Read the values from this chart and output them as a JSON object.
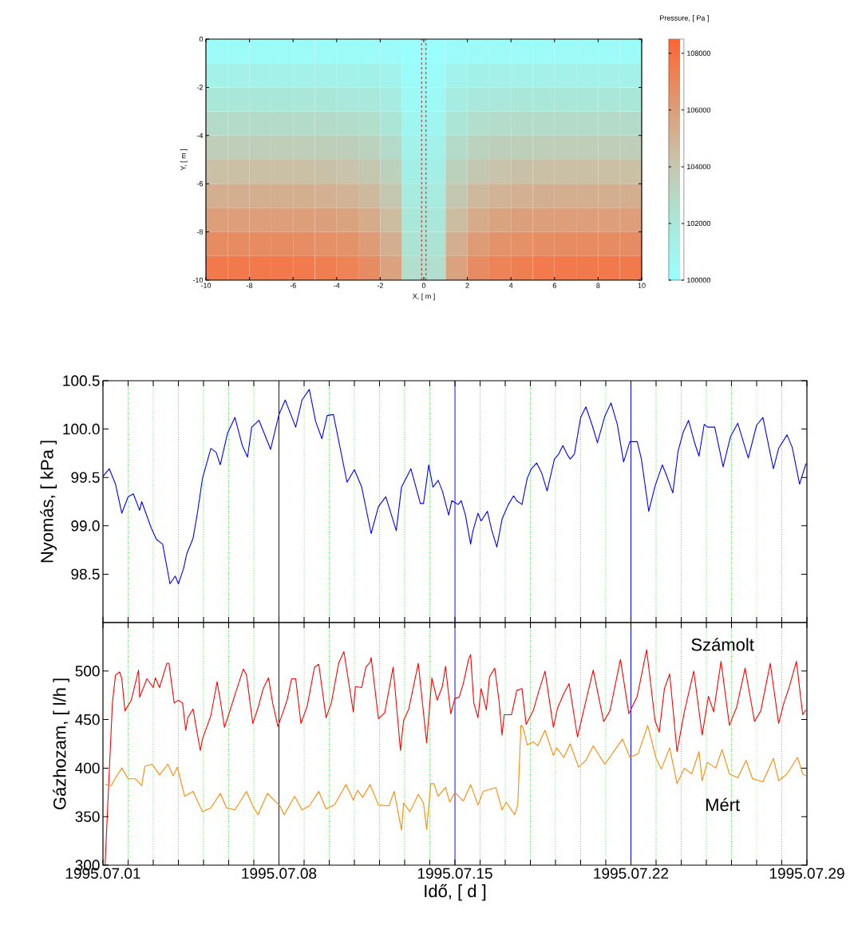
{
  "chart_data": [
    {
      "type": "heatmap",
      "xlabel": "X, [ m ]",
      "ylabel": "Y, [ m ]",
      "clabel": "Pressure, [ Pa ]",
      "x": [
        -9.5,
        -8.5,
        -7.5,
        -6.5,
        -5.5,
        -4.5,
        -3.5,
        -2.5,
        -1.5,
        -0.5,
        0.5,
        1.5,
        2.5,
        3.5,
        4.5,
        5.5,
        6.5,
        7.5,
        8.5,
        9.5
      ],
      "y": [
        -0.5,
        -1.5,
        -2.5,
        -3.5,
        -4.5,
        -5.5,
        -6.5,
        -7.5,
        -8.5,
        -9.5
      ],
      "cells": [
        [
          100400,
          100400,
          100400,
          100400,
          100400,
          100400,
          100400,
          100400,
          100350,
          100100,
          100100,
          100350,
          100400,
          100400,
          100400,
          100400,
          100400,
          100400,
          100400,
          100400
        ],
        [
          101200,
          101200,
          101200,
          101200,
          101200,
          101200,
          101200,
          101150,
          101000,
          100300,
          100300,
          101000,
          101150,
          101200,
          101200,
          101200,
          101200,
          101200,
          101200,
          101200
        ],
        [
          102000,
          102000,
          102000,
          102000,
          102000,
          102000,
          101950,
          101900,
          101600,
          100500,
          100500,
          101600,
          101900,
          101950,
          102000,
          102000,
          102000,
          102000,
          102000,
          102000
        ],
        [
          102800,
          102800,
          102800,
          102800,
          102800,
          102800,
          102750,
          102600,
          102200,
          100800,
          100800,
          102200,
          102600,
          102750,
          102800,
          102800,
          102800,
          102800,
          102800,
          102800
        ],
        [
          103600,
          103600,
          103600,
          103600,
          103600,
          103550,
          103500,
          103300,
          102800,
          101100,
          101100,
          102800,
          103300,
          103500,
          103550,
          103600,
          103600,
          103600,
          103600,
          103600
        ],
        [
          104400,
          104400,
          104400,
          104400,
          104400,
          104350,
          104250,
          104000,
          103400,
          101400,
          101400,
          103400,
          104000,
          104250,
          104350,
          104400,
          104400,
          104400,
          104400,
          104400
        ],
        [
          105200,
          105200,
          105200,
          105200,
          105200,
          105150,
          105000,
          104700,
          104000,
          101700,
          101700,
          104000,
          104700,
          105000,
          105150,
          105200,
          105200,
          105200,
          105200,
          105200
        ],
        [
          106000,
          106000,
          106000,
          106000,
          105950,
          105900,
          105750,
          105400,
          104600,
          102000,
          102000,
          104600,
          105400,
          105750,
          105900,
          105950,
          106000,
          106000,
          106000,
          106000
        ],
        [
          106800,
          106800,
          106800,
          106800,
          106750,
          106650,
          106500,
          106100,
          105200,
          102300,
          102300,
          105200,
          106100,
          106500,
          106650,
          106750,
          106800,
          106800,
          106800,
          106800
        ],
        [
          107600,
          107600,
          107600,
          107600,
          107550,
          107400,
          107200,
          106800,
          105800,
          102600,
          102600,
          105800,
          106800,
          107200,
          107400,
          107550,
          107600,
          107600,
          107600,
          107600
        ]
      ],
      "xlim": [
        -10,
        10
      ],
      "ylim": [
        -10,
        0
      ],
      "xticks": [
        -10,
        -8,
        -6,
        -4,
        -2,
        0,
        2,
        4,
        6,
        8,
        10
      ],
      "yticks": [
        -10,
        -8,
        -6,
        -4,
        -2,
        0
      ],
      "clim": [
        100000,
        108500
      ],
      "cticks": [
        100000,
        102000,
        104000,
        106000,
        108000
      ],
      "ref_lines": [
        {
          "axis": "x",
          "value": -0.1,
          "color": "#b22222",
          "line_style": "dashed"
        },
        {
          "axis": "x",
          "value": 0.1,
          "color": "#b22222",
          "line_style": "dashed"
        }
      ]
    },
    {
      "type": "line",
      "ylabel": "Nyomás, [ kPa ]",
      "xlim": [
        "1995-07-01",
        "1995-07-29"
      ],
      "xticks": [
        {
          "value": "1995-07-01",
          "label": null
        },
        "1995-07-02",
        "1995-07-03",
        "1995-07-04",
        "1995-07-05",
        "1995-07-06",
        "1995-07-07",
        {
          "value": "1995-07-08",
          "label": null
        },
        "1995-07-09",
        "1995-07-10",
        "1995-07-11",
        "1995-07-12",
        "1995-07-13",
        "1995-07-14",
        {
          "value": "1995-07-15",
          "label": null
        },
        "1995-07-16",
        "1995-07-17",
        "1995-07-18",
        "1995-07-19",
        "1995-07-20",
        "1995-07-21",
        {
          "value": "1995-07-22",
          "label": null
        },
        "1995-07-23",
        "1995-07-24",
        "1995-07-25",
        "1995-07-26",
        "1995-07-27",
        "1995-07-28",
        {
          "value": "1995-07-29",
          "label": null
        }
      ],
      "ylim": [
        98.0,
        100.5
      ],
      "yticks": [
        98.5,
        {
          "value": 99,
          "label": "99.0"
        },
        99.5,
        {
          "value": 100,
          "label": "100.0"
        },
        100.5
      ],
      "tick_labels": "y",
      "grid": "x",
      "series": [
        {
          "color": "#0000ff",
          "x": [
            "1995-07-01T00:00",
            "1995-07-01T06:00",
            "1995-07-01T12:00",
            "1995-07-01T18:00",
            "1995-07-02T00:00",
            "1995-07-02T05:00",
            "1995-07-02T11:00",
            "1995-07-02T13:00",
            "1995-07-02T22:00",
            "1995-07-03T03:00",
            "1995-07-03T09:00",
            "1995-07-03T16:00",
            "1995-07-03T21:00",
            "1995-07-04T00:00",
            "1995-07-04T05:00",
            "1995-07-04T08:00",
            "1995-07-04T14:00",
            "1995-07-04T18:00",
            "1995-07-04T23:00",
            "1995-07-05T07:00",
            "1995-07-05T12:00",
            "1995-07-05T16:00",
            "1995-07-05T23:00",
            "1995-07-06T06:00",
            "1995-07-06T13:00",
            "1995-07-06T18:00",
            "1995-07-06T22:00",
            "1995-07-07T05:00",
            "1995-07-07T16:00",
            "1995-07-08T00:00",
            "1995-07-08T06:00",
            "1995-07-08T16:00",
            "1995-07-08T22:00",
            "1995-07-09T05:00",
            "1995-07-09T11:00",
            "1995-07-09T17:00",
            "1995-07-09T22:00",
            "1995-07-10T04:00",
            "1995-07-10T17:00",
            "1995-07-11T00:00",
            "1995-07-11T07:00",
            "1995-07-11T16:00",
            "1995-07-11T23:00",
            "1995-07-12T06:00",
            "1995-07-12T16:00",
            "1995-07-12T21:00",
            "1995-07-13T06:00",
            "1995-07-13T15:00",
            "1995-07-13T18:00",
            "1995-07-13T23:00",
            "1995-07-14T03:00",
            "1995-07-14T08:00",
            "1995-07-14T12:00",
            "1995-07-14T18:00",
            "1995-07-14T21:00",
            "1995-07-15T03:00",
            "1995-07-15T06:00",
            "1995-07-15T10:00",
            "1995-07-15T15:00",
            "1995-07-15T17:00",
            "1995-07-15T22:00",
            "1995-07-16T01:00",
            "1995-07-16T07:00",
            "1995-07-16T11:00",
            "1995-07-16T16:00",
            "1995-07-16T21:00",
            "1995-07-17T03:00",
            "1995-07-17T08:00",
            "1995-07-17T11:00",
            "1995-07-17T16:00",
            "1995-07-17T21:00",
            "1995-07-18T01:00",
            "1995-07-18T06:00",
            "1995-07-18T11:00",
            "1995-07-18T16:00",
            "1995-07-18T23:00",
            "1995-07-19T03:00",
            "1995-07-19T07:00",
            "1995-07-19T11:00",
            "1995-07-19T14:00",
            "1995-07-19T18:00",
            "1995-07-20T00:00",
            "1995-07-20T05:00",
            "1995-07-20T11:00",
            "1995-07-20T16:00",
            "1995-07-20T23:00",
            "1995-07-21T05:00",
            "1995-07-21T11:00",
            "1995-07-21T17:00",
            "1995-07-21T23:00",
            "1995-07-22T06:00",
            "1995-07-22T10:00",
            "1995-07-22T17:00",
            "1995-07-22T23:00",
            "1995-07-23T06:00",
            "1995-07-23T10:00",
            "1995-07-23T16:00",
            "1995-07-23T21:00",
            "1995-07-24T02:00",
            "1995-07-24T07:00",
            "1995-07-24T13:00",
            "1995-07-24T17:00",
            "1995-07-24T22:00",
            "1995-07-25T01:00",
            "1995-07-25T08:00",
            "1995-07-25T16:00",
            "1995-07-25T23:00",
            "1995-07-26T06:00",
            "1995-07-26T16:00",
            "1995-07-27T00:00",
            "1995-07-27T06:00",
            "1995-07-27T16:00",
            "1995-07-27T21:00",
            "1995-07-28T05:00",
            "1995-07-28T10:00",
            "1995-07-28T17:00",
            "1995-07-28T23:00",
            "1995-07-29T00:00"
          ],
          "values": [
            99.51,
            99.59,
            99.43,
            99.13,
            99.3,
            99.33,
            99.16,
            99.25,
            98.98,
            98.86,
            98.81,
            98.4,
            98.48,
            98.4,
            98.56,
            98.71,
            98.87,
            99.12,
            99.49,
            99.8,
            99.76,
            99.63,
            99.96,
            100.12,
            99.83,
            99.71,
            100.02,
            100.09,
            99.79,
            100.15,
            100.3,
            100.02,
            100.3,
            100.41,
            100.08,
            99.9,
            100.14,
            100.15,
            99.45,
            99.58,
            99.4,
            98.92,
            99.2,
            99.3,
            98.95,
            99.4,
            99.59,
            99.23,
            99.23,
            99.63,
            99.4,
            99.47,
            99.36,
            99.11,
            99.26,
            99.22,
            99.26,
            99.11,
            98.81,
            98.94,
            99.13,
            99.05,
            99.15,
            98.96,
            98.78,
            99.07,
            99.22,
            99.31,
            99.26,
            99.22,
            99.49,
            99.59,
            99.65,
            99.54,
            99.36,
            99.69,
            99.74,
            99.83,
            99.74,
            99.69,
            99.74,
            100.12,
            100.23,
            100.04,
            99.86,
            100.13,
            100.27,
            100.05,
            99.66,
            99.87,
            99.87,
            99.69,
            99.15,
            99.41,
            99.63,
            99.52,
            99.34,
            99.77,
            99.97,
            100.09,
            99.85,
            99.72,
            100.05,
            100.02,
            100.02,
            99.61,
            99.92,
            100.06,
            99.7,
            100.04,
            100.12,
            99.59,
            99.8,
            99.94,
            99.81,
            99.43,
            99.64,
            99.64
          ]
        }
      ]
    },
    {
      "type": "line",
      "xlabel": "Idő, [ d ]",
      "ylabel": "Gázhozam, [ l/h ]",
      "xlim": [
        "1995-07-01",
        "1995-07-29"
      ],
      "xticks": [
        {
          "value": "1995-07-01",
          "label": "1995.07.01"
        },
        {
          "value": "1995-07-02",
          "label": null
        },
        {
          "value": "1995-07-03",
          "label": null
        },
        {
          "value": "1995-07-04",
          "label": null
        },
        {
          "value": "1995-07-05",
          "label": null
        },
        {
          "value": "1995-07-06",
          "label": null
        },
        {
          "value": "1995-07-07",
          "label": null
        },
        {
          "value": "1995-07-08",
          "label": "1995.07.08"
        },
        {
          "value": "1995-07-09",
          "label": null
        },
        {
          "value": "1995-07-10",
          "label": null
        },
        {
          "value": "1995-07-11",
          "label": null
        },
        {
          "value": "1995-07-12",
          "label": null
        },
        {
          "value": "1995-07-13",
          "label": null
        },
        {
          "value": "1995-07-14",
          "label": null
        },
        {
          "value": "1995-07-15",
          "label": "1995.07.15"
        },
        {
          "value": "1995-07-16",
          "label": null
        },
        {
          "value": "1995-07-17",
          "label": null
        },
        {
          "value": "1995-07-18",
          "label": null
        },
        {
          "value": "1995-07-19",
          "label": null
        },
        {
          "value": "1995-07-20",
          "label": null
        },
        {
          "value": "1995-07-21",
          "label": null
        },
        {
          "value": "1995-07-22",
          "label": "1995.07.22"
        },
        {
          "value": "1995-07-23",
          "label": null
        },
        {
          "value": "1995-07-24",
          "label": null
        },
        {
          "value": "1995-07-25",
          "label": null
        },
        {
          "value": "1995-07-26",
          "label": null
        },
        {
          "value": "1995-07-27",
          "label": null
        },
        {
          "value": "1995-07-28",
          "label": null
        },
        {
          "value": "1995-07-29",
          "label": "1995.07.29"
        }
      ],
      "ylim": [
        300,
        550
      ],
      "yticks": [
        300,
        350,
        400,
        450,
        500
      ],
      "grid": "x",
      "series": [
        {
          "name": "Számolt",
          "color": "#ff0000",
          "x": [
            "1995-07-01T02:00",
            "1995-07-01T09:00",
            "1995-07-01T12:00",
            "1995-07-01T16:00",
            "1995-07-01T18:00",
            "1995-07-01T21:00",
            "1995-07-02T03:00",
            "1995-07-02T10:00",
            "1995-07-02T11:00",
            "1995-07-02T18:00",
            "1995-07-03T00:00",
            "1995-07-03T02:00",
            "1995-07-03T06:00",
            "1995-07-03T13:00",
            "1995-07-03T15:00",
            "1995-07-03T20:00",
            "1995-07-04T00:00",
            "1995-07-04T04:00",
            "1995-07-04T07:00",
            "1995-07-04T09:00",
            "1995-07-04T14:00",
            "1995-07-04T17:00",
            "1995-07-04T21:00",
            "1995-07-04T23:00",
            "1995-07-05T07:00",
            "1995-07-05T13:00",
            "1995-07-05T16:00",
            "1995-07-05T20:00",
            "1995-07-06T00:00",
            "1995-07-06T07:00",
            "1995-07-06T14:00",
            "1995-07-06T17:00",
            "1995-07-06T23:00",
            "1995-07-07T04:00",
            "1995-07-07T09:00",
            "1995-07-07T14:00",
            "1995-07-07T18:00",
            "1995-07-07T23:00",
            "1995-07-08T04:00",
            "1995-07-08T08:00",
            "1995-07-08T12:00",
            "1995-07-08T16:00",
            "1995-07-08T21:00",
            "1995-07-09T03:00",
            "1995-07-09T10:00",
            "1995-07-09T14:00",
            "1995-07-09T21:00",
            "1995-07-10T02:00",
            "1995-07-10T09:00",
            "1995-07-10T14:00",
            "1995-07-10T23:00",
            "1995-07-11T01:00",
            "1995-07-11T07:00",
            "1995-07-11T11:00",
            "1995-07-11T15:00",
            "1995-07-11T16:00",
            "1995-07-11T23:00",
            "1995-07-12T05:00",
            "1995-07-12T13:00",
            "1995-07-12T20:00",
            "1995-07-12T23:00",
            "1995-07-13T04:00",
            "1995-07-13T13:00",
            "1995-07-13T21:00",
            "1995-07-14T02:00",
            "1995-07-14T07:00",
            "1995-07-14T12:00",
            "1995-07-14T15:00",
            "1995-07-14T20:00",
            "1995-07-15T00:00",
            "1995-07-15T04:00",
            "1995-07-15T08:00",
            "1995-07-15T13:00",
            "1995-07-15T15:00",
            "1995-07-15T18:00",
            "1995-07-15T22:00",
            "1995-07-16T01:00",
            "1995-07-16T06:00",
            "1995-07-16T09:00",
            "1995-07-16T14:00",
            "1995-07-16T18:00",
            "1995-07-16T21:00",
            "1995-07-16T23:00",
            "1995-07-17T06:00",
            "1995-07-17T11:00",
            "1995-07-17T16:00",
            "1995-07-17T20:00",
            "1995-07-18T03:00",
            "1995-07-18T08:00",
            "1995-07-18T14:00",
            "1995-07-18T22:00",
            "1995-07-19T02:00",
            "1995-07-19T08:00",
            "1995-07-19T13:00",
            "1995-07-19T21:00",
            "1995-07-20T05:00",
            "1995-07-20T12:00",
            "1995-07-20T22:00",
            "1995-07-21T04:00",
            "1995-07-21T14:00",
            "1995-07-21T22:00",
            "1995-07-22T06:00",
            "1995-07-22T15:00",
            "1995-07-22T23:00",
            "1995-07-23T03:00",
            "1995-07-23T08:00",
            "1995-07-23T13:00",
            "1995-07-23T20:00",
            "1995-07-24T03:00",
            "1995-07-24T12:00",
            "1995-07-24T20:00",
            "1995-07-25T02:00",
            "1995-07-25T07:00",
            "1995-07-25T14:00",
            "1995-07-25T22:00",
            "1995-07-26T05:00",
            "1995-07-26T13:00",
            "1995-07-26T22:00",
            "1995-07-27T04:00",
            "1995-07-27T13:00",
            "1995-07-27T21:00",
            "1995-07-28T02:00",
            "1995-07-28T07:00",
            "1995-07-28T14:00",
            "1995-07-28T20:00",
            "1995-07-28T23:00"
          ],
          "values": [
            300,
            467,
            496,
            499,
            492,
            459,
            470,
            501,
            473,
            492,
            483,
            493,
            483,
            508,
            508,
            467,
            470,
            467,
            439,
            452,
            461,
            442,
            418,
            430,
            454,
            489,
            470,
            442,
            455,
            479,
            502,
            496,
            446,
            462,
            482,
            493,
            467,
            443,
            458,
            471,
            492,
            492,
            446,
            464,
            504,
            507,
            452,
            467,
            508,
            520,
            458,
            484,
            483,
            504,
            509,
            514,
            451,
            457,
            504,
            418,
            449,
            461,
            508,
            426,
            493,
            470,
            484,
            505,
            456,
            472,
            473,
            487,
            512,
            517,
            467,
            452,
            482,
            460,
            494,
            503,
            470,
            434,
            455,
            455,
            480,
            482,
            445,
            460,
            479,
            500,
            442,
            462,
            477,
            487,
            432,
            469,
            501,
            448,
            459,
            512,
            456,
            474,
            522,
            449,
            437,
            482,
            497,
            417,
            458,
            500,
            434,
            474,
            458,
            510,
            444,
            463,
            503,
            448,
            459,
            508,
            446,
            467,
            483,
            510,
            455,
            460
          ]
        },
        {
          "name": "Mért",
          "color": "#ff8800",
          "x": [
            "1995-07-01T02:00",
            "1995-07-01T08:00",
            "1995-07-01T12:00",
            "1995-07-01T18:00",
            "1995-07-02T00:00",
            "1995-07-02T07:00",
            "1995-07-02T13:00",
            "1995-07-02T16:00",
            "1995-07-02T23:00",
            "1995-07-03T06:00",
            "1995-07-03T14:00",
            "1995-07-03T19:00",
            "1995-07-03T23:00",
            "1995-07-04T06:00",
            "1995-07-04T14:00",
            "1995-07-04T23:00",
            "1995-07-05T07:00",
            "1995-07-05T16:00",
            "1995-07-05T22:00",
            "1995-07-06T06:00",
            "1995-07-06T17:00",
            "1995-07-06T23:00",
            "1995-07-07T04:00",
            "1995-07-07T13:00",
            "1995-07-08T01:00",
            "1995-07-08T05:00",
            "1995-07-08T15:00",
            "1995-07-08T22:00",
            "1995-07-09T05:00",
            "1995-07-09T14:00",
            "1995-07-09T21:00",
            "1995-07-10T05:00",
            "1995-07-10T16:00",
            "1995-07-10T23:00",
            "1995-07-11T03:00",
            "1995-07-11T08:00",
            "1995-07-11T15:00",
            "1995-07-11T23:00",
            "1995-07-12T09:00",
            "1995-07-12T14:00",
            "1995-07-12T21:00",
            "1995-07-12T23:00",
            "1995-07-13T05:00",
            "1995-07-13T13:00",
            "1995-07-13T18:00",
            "1995-07-13T21:00",
            "1995-07-14T01:00",
            "1995-07-14T04:00",
            "1995-07-14T08:00",
            "1995-07-14T15:00",
            "1995-07-14T19:00",
            "1995-07-15T00:00",
            "1995-07-15T08:00",
            "1995-07-15T15:00",
            "1995-07-15T22:00",
            "1995-07-16T03:00",
            "1995-07-16T15:00",
            "1995-07-16T21:00",
            "1995-07-17T01:00",
            "1995-07-17T09:00",
            "1995-07-17T12:00",
            "1995-07-17T15:00",
            "1995-07-17T17:00",
            "1995-07-17T21:00",
            "1995-07-18T03:00",
            "1995-07-18T07:00",
            "1995-07-18T14:00",
            "1995-07-18T22:00",
            "1995-07-19T01:00",
            "1995-07-19T08:00",
            "1995-07-19T14:00",
            "1995-07-19T22:00",
            "1995-07-20T05:00",
            "1995-07-20T12:00",
            "1995-07-20T23:00",
            "1995-07-21T03:00",
            "1995-07-21T16:00",
            "1995-07-21T23:00",
            "1995-07-22T07:00",
            "1995-07-22T16:00",
            "1995-07-23T00:00",
            "1995-07-23T05:00",
            "1995-07-23T13:00",
            "1995-07-23T20:00",
            "1995-07-24T03:00",
            "1995-07-24T10:00",
            "1995-07-24T17:00",
            "1995-07-24T20:00",
            "1995-07-25T01:00",
            "1995-07-25T09:00",
            "1995-07-25T15:00",
            "1995-07-25T22:00",
            "1995-07-26T06:00",
            "1995-07-26T14:00",
            "1995-07-26T20:00",
            "1995-07-27T06:00",
            "1995-07-27T16:00",
            "1995-07-27T21:00",
            "1995-07-28T05:00",
            "1995-07-28T15:00",
            "1995-07-28T20:00",
            "1995-07-28T23:00"
          ],
          "values": [
            383,
            382,
            390,
            400,
            389,
            389,
            382,
            402,
            404,
            393,
            404,
            392,
            401,
            371,
            376,
            355,
            359,
            374,
            359,
            357,
            376,
            361,
            352,
            374,
            361,
            352,
            371,
            357,
            361,
            376,
            358,
            362,
            383,
            367,
            377,
            370,
            383,
            362,
            361,
            376,
            336,
            364,
            355,
            373,
            364,
            337,
            384,
            384,
            371,
            380,
            365,
            375,
            366,
            383,
            362,
            376,
            380,
            357,
            365,
            352,
            362,
            444,
            442,
            424,
            427,
            423,
            439,
            413,
            421,
            411,
            425,
            401,
            408,
            423,
            404,
            410,
            430,
            411,
            415,
            444,
            410,
            399,
            421,
            384,
            400,
            394,
            417,
            387,
            406,
            400,
            419,
            394,
            390,
            408,
            389,
            386,
            410,
            387,
            394,
            411,
            394,
            392
          ]
        }
      ]
    }
  ]
}
